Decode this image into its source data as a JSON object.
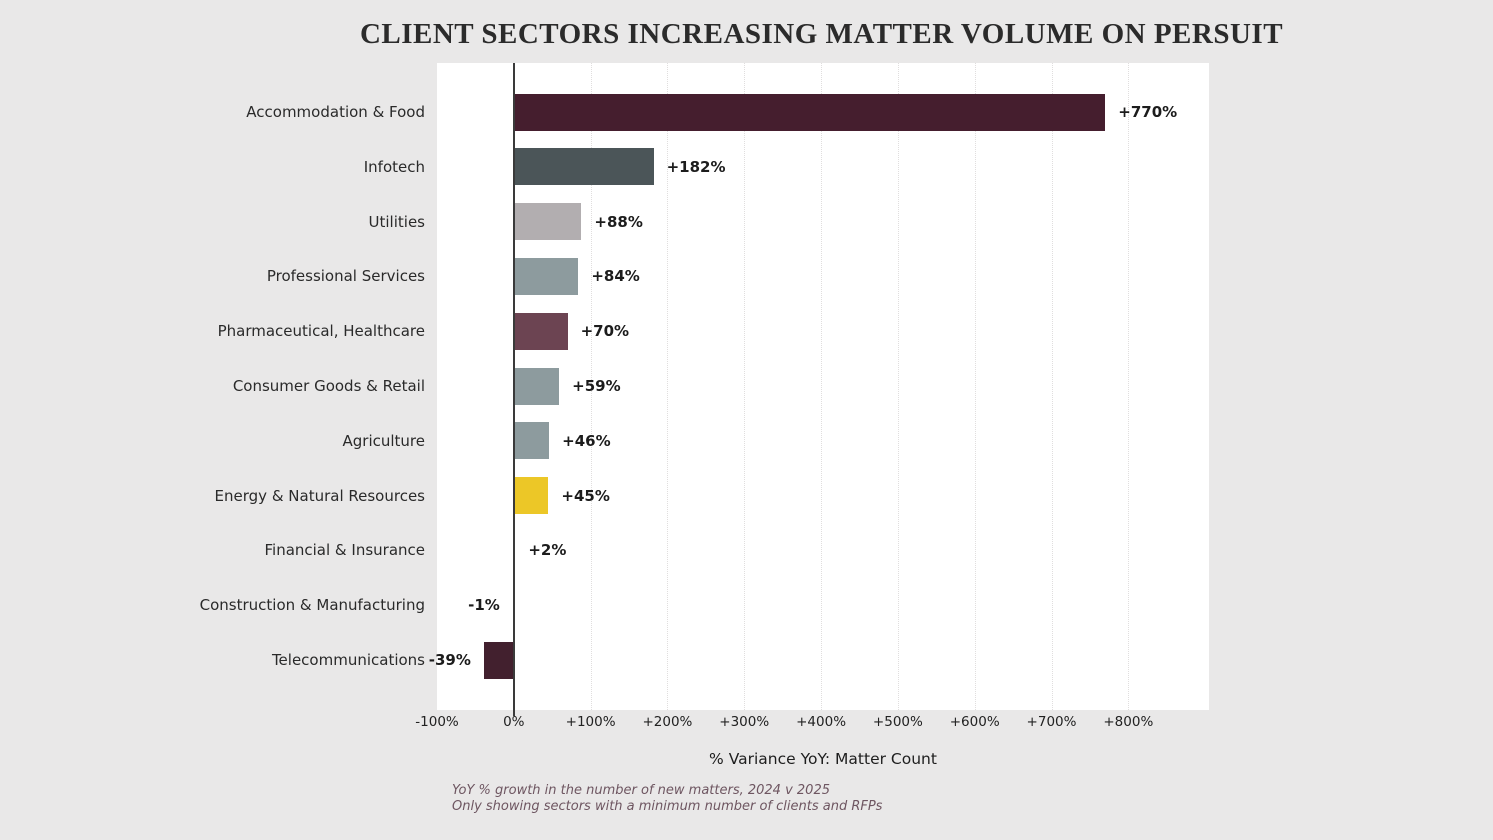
{
  "page": {
    "background_color": "#e9e8e8"
  },
  "chart_data": {
    "type": "bar",
    "orientation": "horizontal",
    "title": "CLIENT SECTORS INCREASING MATTER VOLUME ON PERSUIT",
    "xlabel": "% Variance YoY: Matter Count",
    "xlim": [
      -100,
      905
    ],
    "grid": "vertical-dotted",
    "legend": "none",
    "categories": [
      "Accommodation & Food",
      "Infotech",
      "Utilities",
      "Professional Services",
      "Pharmaceutical, Healthcare",
      "Consumer Goods & Retail",
      "Agriculture",
      "Energy & Natural Resources",
      "Financial & Insurance",
      "Construction & Manufacturing",
      "Telecommunications"
    ],
    "values": [
      770,
      182,
      88,
      84,
      70,
      59,
      46,
      45,
      2,
      -1,
      -39
    ],
    "value_labels": [
      "+770%",
      "+182%",
      "+88%",
      "+84%",
      "+70%",
      "+59%",
      "+46%",
      "+45%",
      "+2%",
      "-1%",
      "-39%"
    ],
    "bar_colors": [
      "#451e2e",
      "#4b5558",
      "#b2aeb0",
      "#8d9b9e",
      "#6c4452",
      "#8d9b9e",
      "#8d9b9e",
      "#ecc727",
      "#eeda8c",
      "#42202e",
      "#42202e"
    ],
    "bar_patterns": [
      null,
      null,
      "dots",
      null,
      null,
      null,
      null,
      null,
      null,
      null,
      null
    ],
    "xticks": [
      {
        "value": -100,
        "label": "-100%"
      },
      {
        "value": 0,
        "label": "0%"
      },
      {
        "value": 100,
        "label": "+100%"
      },
      {
        "value": 200,
        "label": "+200%"
      },
      {
        "value": 300,
        "label": "+300%"
      },
      {
        "value": 400,
        "label": "+400%"
      },
      {
        "value": 500,
        "label": "+500%"
      },
      {
        "value": 600,
        "label": "+600%"
      },
      {
        "value": 700,
        "label": "+700%"
      },
      {
        "value": 800,
        "label": "+800%"
      }
    ],
    "footnotes": [
      "YoY % growth in the number of new matters, 2024 v 2025",
      "Only showing sectors with a minimum number of clients and RFPs"
    ],
    "colors": {
      "panel": "#ffffff",
      "zero_line": "#3a3a3a",
      "gridline": "#e0dede",
      "title": "#2b2b2b",
      "footnote": "#6e5661"
    }
  }
}
